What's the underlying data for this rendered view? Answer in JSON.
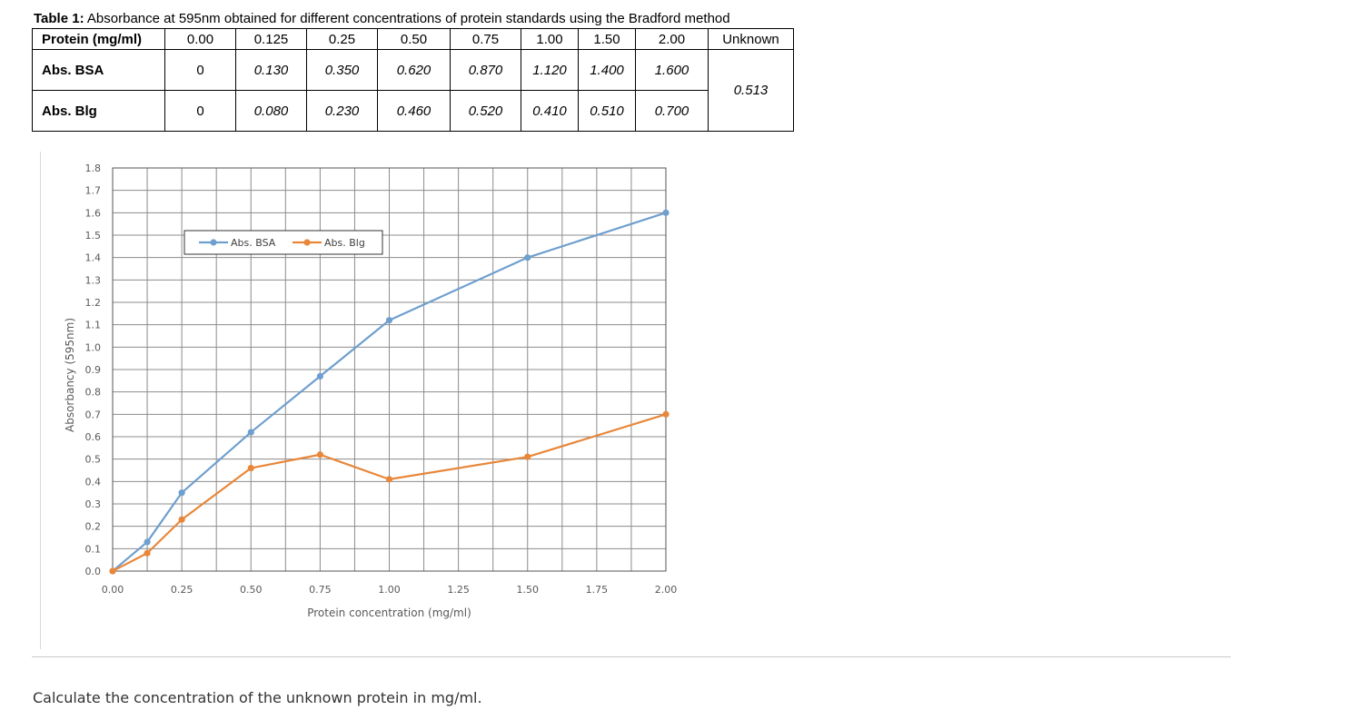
{
  "table": {
    "caption_bold": "Table 1:",
    "caption_text": " Absorbance at 595nm obtained for different concentrations of protein standards using the Bradford method",
    "header_label": "Protein (mg/ml)",
    "concentrations": [
      "0.00",
      "0.125",
      "0.25",
      "0.50",
      "0.75",
      "1.00",
      "1.50",
      "2.00"
    ],
    "unknown_label": "Unknown",
    "rows": [
      {
        "label": "Abs. BSA",
        "values": [
          "0",
          "0.130",
          "0.350",
          "0.620",
          "0.870",
          "1.120",
          "1.400",
          "1.600"
        ]
      },
      {
        "label": "Abs. Blg",
        "values": [
          "0",
          "0.080",
          "0.230",
          "0.460",
          "0.520",
          "0.410",
          "0.510",
          "0.700"
        ]
      }
    ],
    "unknown_value": "0.513"
  },
  "chart_data": {
    "type": "line",
    "title": "",
    "xlabel": "Protein concentration (mg/ml)",
    "ylabel": "Absorbancy (595nm)",
    "x": [
      0,
      0.125,
      0.25,
      0.5,
      0.75,
      1.0,
      1.5,
      2.0
    ],
    "xlim": [
      0,
      2.0
    ],
    "ylim": [
      0,
      1.8
    ],
    "x_ticks": [
      "0.00",
      "0.25",
      "0.50",
      "0.75",
      "1.00",
      "1.25",
      "1.50",
      "1.75",
      "2.00"
    ],
    "y_ticks": [
      "0.0",
      "0.1",
      "0.2",
      "0.3",
      "0.4",
      "0.5",
      "0.6",
      "0.7",
      "0.8",
      "0.9",
      "1.0",
      "1.1",
      "1.2",
      "1.3",
      "1.4",
      "1.5",
      "1.6",
      "1.7",
      "1.8"
    ],
    "x_minor_step": 0.125,
    "y_step": 0.1,
    "grid": true,
    "legend_position": "top-left",
    "series": [
      {
        "name": "Abs. BSA",
        "color": "#6f9fcf",
        "values": [
          0,
          0.13,
          0.35,
          0.62,
          0.87,
          1.12,
          1.4,
          1.6
        ]
      },
      {
        "name": "Abs. Blg",
        "color": "#e8873a",
        "values": [
          0,
          0.08,
          0.23,
          0.46,
          0.52,
          0.41,
          0.51,
          0.7
        ]
      }
    ]
  },
  "question": "Calculate the concentration of the unknown protein in mg/ml."
}
